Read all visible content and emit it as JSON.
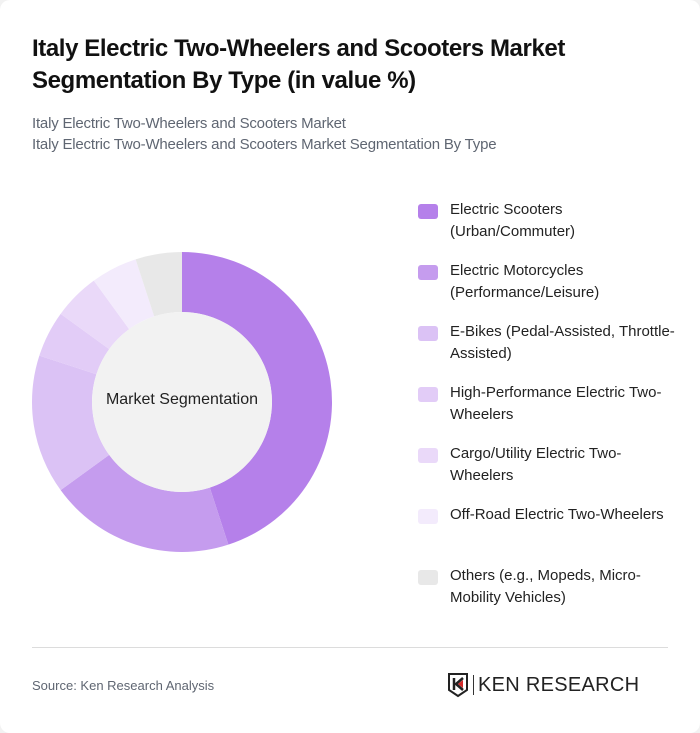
{
  "header": {
    "title": "Italy Electric Two-Wheelers and Scooters Market Segmentation By Type (in value %)",
    "subtitle_line1": "Italy Electric Two-Wheelers and Scooters Market",
    "subtitle_line2": "Italy Electric Two-Wheelers and Scooters Market Segmentation By Type"
  },
  "chart": {
    "center_label": "Market Segmentation"
  },
  "legend": [
    {
      "label": "Electric Scooters (Urban/Commuter)",
      "color": "#b580ea"
    },
    {
      "label": "Electric Motorcycles (Performance/Leisure)",
      "color": "#c59cee"
    },
    {
      "label": "E-Bikes (Pedal-Assisted, Throttle-Assisted)",
      "color": "#dbc2f5"
    },
    {
      "label": "High-Performance Electric Two-Wheelers",
      "color": "#e2ccf7"
    },
    {
      "label": "Cargo/Utility Electric Two-Wheelers",
      "color": "#ead9f9"
    },
    {
      "label": "Off-Road Electric Two-Wheelers",
      "color": "#f3ebfc"
    },
    {
      "label": "Others (e.g., Mopeds, Micro-Mobility Vehicles)",
      "color": "#e8e8e8"
    }
  ],
  "footer": {
    "source": "Source: Ken Research Analysis",
    "logo_text": "KEN RESEARCH"
  },
  "chart_data": {
    "type": "pie",
    "subtype": "donut",
    "title": "Italy Electric Two-Wheelers and Scooters Market Segmentation By Type (in value %)",
    "center_label": "Market Segmentation",
    "categories": [
      "Electric Scooters (Urban/Commuter)",
      "Electric Motorcycles (Performance/Leisure)",
      "E-Bikes (Pedal-Assisted, Throttle-Assisted)",
      "High-Performance Electric Two-Wheelers",
      "Cargo/Utility Electric Two-Wheelers",
      "Off-Road Electric Two-Wheelers",
      "Others (e.g., Mopeds, Micro-Mobility Vehicles)"
    ],
    "values": [
      45,
      20,
      15,
      5,
      5,
      5,
      5
    ],
    "colors": [
      "#b580ea",
      "#c59cee",
      "#dbc2f5",
      "#e2ccf7",
      "#ead9f9",
      "#f3ebfc",
      "#e8e8e8"
    ],
    "unit": "%",
    "legend_position": "right",
    "start_angle": "12 o'clock, clockwise"
  }
}
